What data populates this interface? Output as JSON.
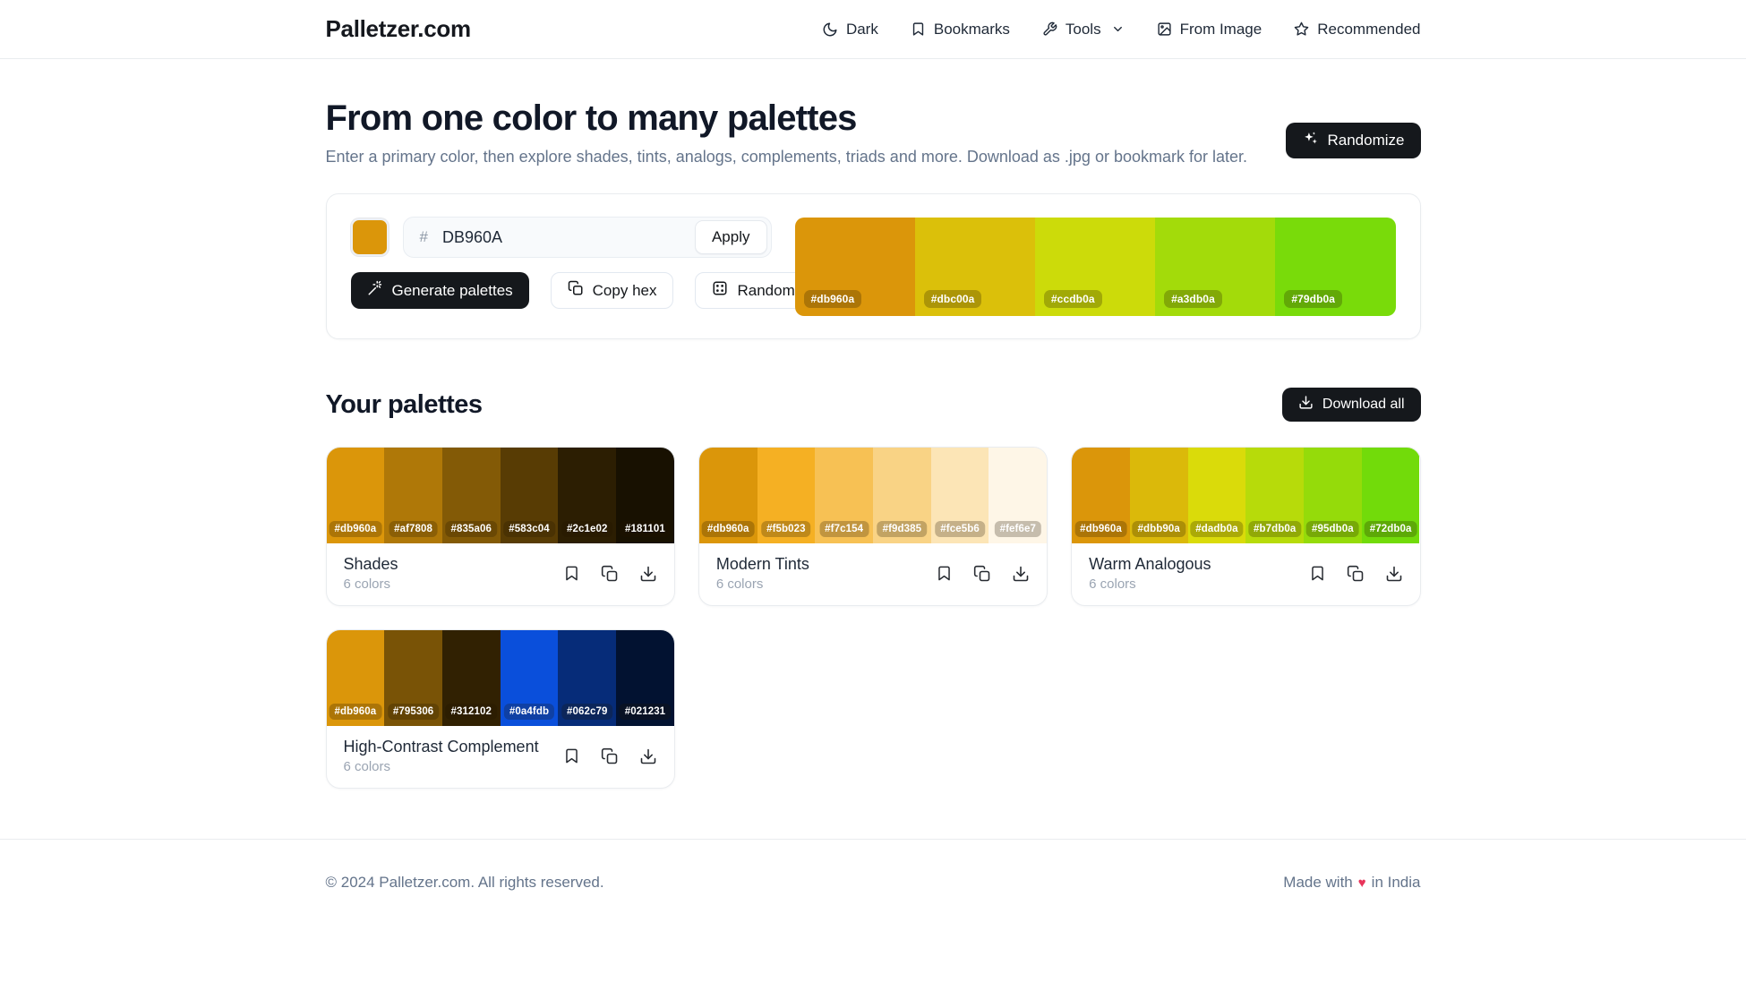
{
  "header": {
    "logo": "Palletzer.com",
    "nav": [
      {
        "label": "Dark",
        "icon": "moon-icon",
        "has_dropdown": false
      },
      {
        "label": "Bookmarks",
        "icon": "bookmark-icon",
        "has_dropdown": false
      },
      {
        "label": "Tools",
        "icon": "wrench-icon",
        "has_dropdown": true
      },
      {
        "label": "From Image",
        "icon": "image-icon",
        "has_dropdown": false
      },
      {
        "label": "Recommended",
        "icon": "star-icon",
        "has_dropdown": false
      }
    ]
  },
  "hero": {
    "title": "From one color to many palettes",
    "subtitle": "Enter a primary color, then explore shades, tints, analogs, complements, triads and more. Download as .jpg or bookmark for later.",
    "randomize_label": "Randomize"
  },
  "color_input": {
    "swatch_color": "#db960a",
    "hash_prefix": "#",
    "hex_value": "DB960A",
    "apply_label": "Apply",
    "generate_label": "Generate palettes",
    "copy_label": "Copy hex",
    "random_label": "Random",
    "preview_colors": [
      "#db960a",
      "#dbc00a",
      "#ccdb0a",
      "#a3db0a",
      "#79db0a"
    ]
  },
  "your_palettes": {
    "title": "Your palettes",
    "download_all_label": "Download all",
    "cards": [
      {
        "title": "Shades",
        "count": "6 colors",
        "colors": [
          "#db960a",
          "#af7808",
          "#835a06",
          "#583c04",
          "#2c1e02",
          "#181101"
        ]
      },
      {
        "title": "Modern Tints",
        "count": "6 colors",
        "colors": [
          "#db960a",
          "#f5b023",
          "#f7c154",
          "#f9d385",
          "#fce5b6",
          "#fef6e7"
        ]
      },
      {
        "title": "Warm Analogous",
        "count": "6 colors",
        "colors": [
          "#db960a",
          "#dbb90a",
          "#dadb0a",
          "#b7db0a",
          "#95db0a",
          "#72db0a"
        ]
      },
      {
        "title": "High-Contrast Complement",
        "count": "6 colors",
        "colors": [
          "#db960a",
          "#795306",
          "#312102",
          "#0a4fdb",
          "#062c79",
          "#021231"
        ]
      }
    ]
  },
  "footer": {
    "copyright": "© 2024 Palletzer.com. All rights reserved.",
    "made_with_prefix": "Made with",
    "heart": "♥",
    "made_with_suffix": "in India",
    "heart_color": "#e8345a"
  },
  "colors": {
    "accent_dark": "#15181c",
    "border": "#e9ecef",
    "muted": "#64748b"
  }
}
